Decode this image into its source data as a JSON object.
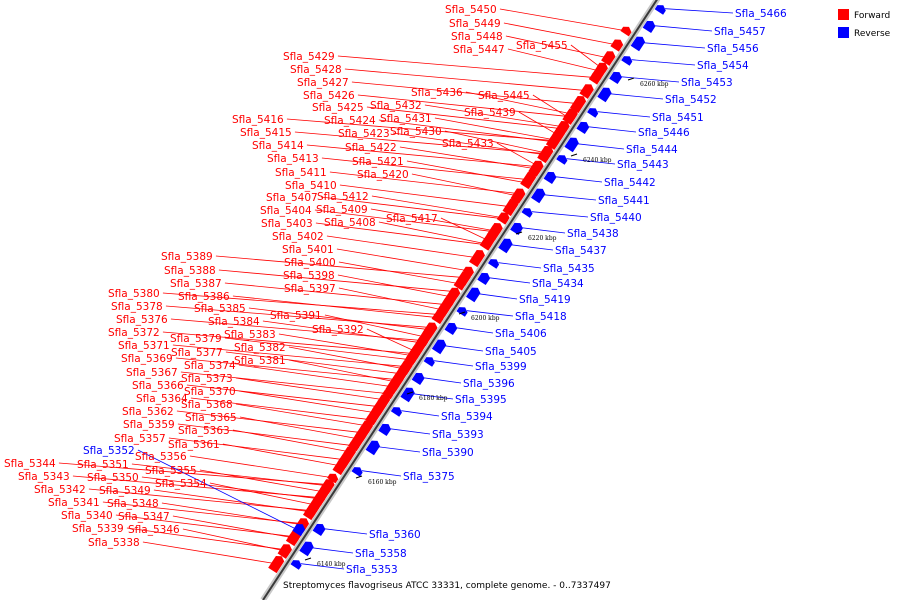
{
  "caption": "Streptomyces flavogriseus ATCC 33331, complete genome. - 0..7337497",
  "legend": {
    "forward": {
      "label": "Forward",
      "color": "#ff0000"
    },
    "reverse": {
      "label": "Reverse",
      "color": "#0000ff"
    }
  },
  "ticks": [
    "6140 kbp",
    "6160 kbp",
    "6180 kbp",
    "6200 kbp",
    "6220 kbp",
    "6240 kbp",
    "6260 kbp"
  ],
  "forward_labels": [
    "Sfla_5450",
    "Sfla_5449",
    "Sfla_5448",
    "Sfla_5447",
    "Sfla_5455",
    "Sfla_5429",
    "Sfla_5428",
    "Sfla_5427",
    "Sfla_5426",
    "Sfla_5436",
    "Sfla_5445",
    "Sfla_5425",
    "Sfla_5432",
    "Sfla_5439",
    "Sfla_5424",
    "Sfla_5431",
    "Sfla_5416",
    "Sfla_5423",
    "Sfla_5430",
    "Sfla_5415",
    "Sfla_5433",
    "Sfla_5414",
    "Sfla_5422",
    "Sfla_5413",
    "Sfla_5421",
    "Sfla_5411",
    "Sfla_5420",
    "Sfla_5410",
    "Sfla_5407",
    "Sfla_5412",
    "Sfla_5404",
    "Sfla_5409",
    "Sfla_5403",
    "Sfla_5408",
    "Sfla_5417",
    "Sfla_5402",
    "Sfla_5401",
    "Sfla_5400",
    "Sfla_5389",
    "Sfla_5398",
    "Sfla_5388",
    "Sfla_5397",
    "Sfla_5387",
    "Sfla_5380",
    "Sfla_5386",
    "Sfla_5378",
    "Sfla_5385",
    "Sfla_5391",
    "Sfla_5376",
    "Sfla_5384",
    "Sfla_5392",
    "Sfla_5372",
    "Sfla_5379",
    "Sfla_5383",
    "Sfla_5371",
    "Sfla_5377",
    "Sfla_5382",
    "Sfla_5369",
    "Sfla_5374",
    "Sfla_5381",
    "Sfla_5367",
    "Sfla_5373",
    "Sfla_5366",
    "Sfla_5370",
    "Sfla_5364",
    "Sfla_5368",
    "Sfla_5362",
    "Sfla_5365",
    "Sfla_5359",
    "Sfla_5363",
    "Sfla_5357",
    "Sfla_5361",
    "Sfla_5356",
    "Sfla_5344",
    "Sfla_5351",
    "Sfla_5355",
    "Sfla_5343",
    "Sfla_5350",
    "Sfla_5354",
    "Sfla_5342",
    "Sfla_5349",
    "Sfla_5341",
    "Sfla_5348",
    "Sfla_5340",
    "Sfla_5347",
    "Sfla_5339",
    "Sfla_5346",
    "Sfla_5338"
  ],
  "reverse_labels": [
    "Sfla_5466",
    "Sfla_5457",
    "Sfla_5456",
    "Sfla_5454",
    "Sfla_5453",
    "Sfla_5452",
    "Sfla_5451",
    "Sfla_5446",
    "Sfla_5444",
    "Sfla_5443",
    "Sfla_5442",
    "Sfla_5441",
    "Sfla_5440",
    "Sfla_5438",
    "Sfla_5437",
    "Sfla_5435",
    "Sfla_5434",
    "Sfla_5419",
    "Sfla_5418",
    "Sfla_5406",
    "Sfla_5405",
    "Sfla_5399",
    "Sfla_5396",
    "Sfla_5395",
    "Sfla_5394",
    "Sfla_5393",
    "Sfla_5390",
    "Sfla_5375",
    "Sfla_5360",
    "Sfla_5358",
    "Sfla_5353",
    "Sfla_5352"
  ]
}
